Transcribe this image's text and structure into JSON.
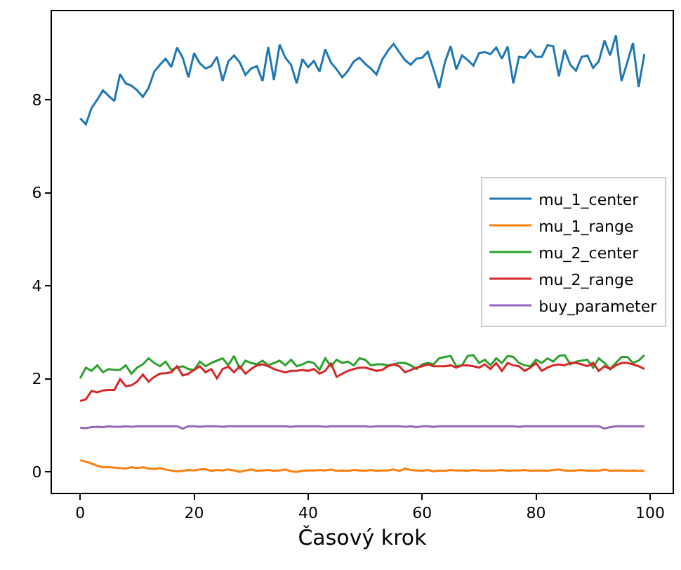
{
  "chart_data": {
    "type": "line",
    "xlabel": "Časový krok",
    "x": [
      0,
      1,
      2,
      3,
      4,
      5,
      6,
      7,
      8,
      9,
      10,
      11,
      12,
      13,
      14,
      15,
      16,
      17,
      18,
      19,
      20,
      21,
      22,
      23,
      24,
      25,
      26,
      27,
      28,
      29,
      30,
      31,
      32,
      33,
      34,
      35,
      36,
      37,
      38,
      39,
      40,
      41,
      42,
      43,
      44,
      45,
      46,
      47,
      48,
      49,
      50,
      51,
      52,
      53,
      54,
      55,
      56,
      57,
      58,
      59,
      60,
      61,
      62,
      63,
      64,
      65,
      66,
      67,
      68,
      69,
      70,
      71,
      72,
      73,
      74,
      75,
      76,
      77,
      78,
      79,
      80,
      81,
      82,
      83,
      84,
      85,
      86,
      87,
      88,
      89,
      90,
      91,
      92,
      93,
      94,
      95,
      96,
      97,
      98,
      99
    ],
    "series": [
      {
        "name": "mu_1_center",
        "color": "#1f77b4",
        "values": [
          7.6,
          7.47,
          7.82,
          8.0,
          8.2,
          8.08,
          7.97,
          8.55,
          8.35,
          8.3,
          8.2,
          8.06,
          8.25,
          8.6,
          8.75,
          8.88,
          8.7,
          9.12,
          8.9,
          8.48,
          9.0,
          8.78,
          8.67,
          8.72,
          8.92,
          8.4,
          8.82,
          8.95,
          8.8,
          8.53,
          8.67,
          8.72,
          8.4,
          9.13,
          8.42,
          9.18,
          8.9,
          8.75,
          8.35,
          8.87,
          8.7,
          8.83,
          8.6,
          9.08,
          8.8,
          8.65,
          8.48,
          8.62,
          8.82,
          8.9,
          8.77,
          8.67,
          8.54,
          8.86,
          9.05,
          9.2,
          9.02,
          8.85,
          8.75,
          8.88,
          8.9,
          9.03,
          8.65,
          8.25,
          8.8,
          9.15,
          8.65,
          8.95,
          8.85,
          8.73,
          9.0,
          9.02,
          8.98,
          9.12,
          8.88,
          9.14,
          8.35,
          8.92,
          8.9,
          9.06,
          8.92,
          8.92,
          9.17,
          9.15,
          8.5,
          9.07,
          8.75,
          8.62,
          8.92,
          8.95,
          8.68,
          8.82,
          9.27,
          8.95,
          9.38,
          8.4,
          8.8,
          9.22,
          8.27,
          8.98
        ]
      },
      {
        "name": "mu_1_range",
        "color": "#ff7f0e",
        "values": [
          0.25,
          0.22,
          0.18,
          0.13,
          0.1,
          0.1,
          0.09,
          0.08,
          0.07,
          0.1,
          0.08,
          0.1,
          0.07,
          0.06,
          0.08,
          0.05,
          0.03,
          0.01,
          0.02,
          0.04,
          0.03,
          0.05,
          0.06,
          0.02,
          0.04,
          0.03,
          0.05,
          0.03,
          0.0,
          0.03,
          0.05,
          0.02,
          0.03,
          0.04,
          0.02,
          0.03,
          0.05,
          0.01,
          0.0,
          0.02,
          0.03,
          0.03,
          0.04,
          0.03,
          0.05,
          0.02,
          0.03,
          0.02,
          0.04,
          0.03,
          0.02,
          0.04,
          0.02,
          0.03,
          0.03,
          0.05,
          0.02,
          0.07,
          0.04,
          0.03,
          0.02,
          0.04,
          0.01,
          0.03,
          0.02,
          0.04,
          0.03,
          0.03,
          0.02,
          0.04,
          0.03,
          0.02,
          0.03,
          0.03,
          0.04,
          0.02,
          0.03,
          0.03,
          0.04,
          0.02,
          0.03,
          0.03,
          0.02,
          0.04,
          0.05,
          0.03,
          0.02,
          0.03,
          0.04,
          0.02,
          0.03,
          0.02,
          0.05,
          0.02,
          0.03,
          0.03,
          0.02,
          0.03,
          0.02,
          0.02
        ]
      },
      {
        "name": "mu_2_center",
        "color": "#2ca02c",
        "values": [
          2.01,
          2.24,
          2.17,
          2.29,
          2.14,
          2.21,
          2.19,
          2.19,
          2.29,
          2.11,
          2.24,
          2.31,
          2.44,
          2.34,
          2.27,
          2.37,
          2.19,
          2.24,
          2.27,
          2.21,
          2.19,
          2.37,
          2.27,
          2.34,
          2.39,
          2.44,
          2.29,
          2.49,
          2.21,
          2.39,
          2.34,
          2.31,
          2.39,
          2.29,
          2.34,
          2.39,
          2.29,
          2.41,
          2.27,
          2.31,
          2.37,
          2.34,
          2.19,
          2.44,
          2.27,
          2.41,
          2.34,
          2.37,
          2.29,
          2.44,
          2.41,
          2.29,
          2.31,
          2.31,
          2.29,
          2.31,
          2.34,
          2.34,
          2.29,
          2.21,
          2.31,
          2.34,
          2.31,
          2.44,
          2.47,
          2.49,
          2.27,
          2.29,
          2.49,
          2.51,
          2.34,
          2.41,
          2.29,
          2.44,
          2.34,
          2.49,
          2.47,
          2.34,
          2.29,
          2.27,
          2.41,
          2.34,
          2.44,
          2.37,
          2.49,
          2.51,
          2.31,
          2.37,
          2.39,
          2.41,
          2.24,
          2.44,
          2.34,
          2.21,
          2.34,
          2.47,
          2.47,
          2.34,
          2.39,
          2.51
        ]
      },
      {
        "name": "mu_2_range",
        "color": "#d62728",
        "values": [
          1.52,
          1.56,
          1.74,
          1.71,
          1.75,
          1.76,
          1.76,
          1.99,
          1.84,
          1.86,
          1.94,
          2.09,
          1.94,
          2.04,
          2.11,
          2.12,
          2.14,
          2.27,
          2.07,
          2.11,
          2.19,
          2.27,
          2.14,
          2.21,
          2.01,
          2.21,
          2.26,
          2.14,
          2.27,
          2.11,
          2.21,
          2.29,
          2.31,
          2.27,
          2.21,
          2.17,
          2.14,
          2.17,
          2.17,
          2.19,
          2.17,
          2.21,
          2.11,
          2.17,
          2.34,
          2.04,
          2.11,
          2.17,
          2.21,
          2.24,
          2.24,
          2.21,
          2.17,
          2.19,
          2.27,
          2.31,
          2.27,
          2.14,
          2.19,
          2.24,
          2.27,
          2.31,
          2.27,
          2.27,
          2.27,
          2.29,
          2.24,
          2.29,
          2.29,
          2.27,
          2.24,
          2.31,
          2.21,
          2.34,
          2.17,
          2.34,
          2.29,
          2.27,
          2.17,
          2.24,
          2.34,
          2.17,
          2.24,
          2.29,
          2.31,
          2.29,
          2.34,
          2.34,
          2.31,
          2.27,
          2.34,
          2.17,
          2.27,
          2.21,
          2.29,
          2.34,
          2.34,
          2.31,
          2.27,
          2.21
        ]
      },
      {
        "name": "buy_parameter",
        "color": "#9467bd",
        "values": [
          0.95,
          0.94,
          0.96,
          0.97,
          0.96,
          0.98,
          0.97,
          0.97,
          0.98,
          0.97,
          0.98,
          0.98,
          0.98,
          0.98,
          0.98,
          0.98,
          0.98,
          0.98,
          0.93,
          0.98,
          0.98,
          0.97,
          0.98,
          0.98,
          0.98,
          0.97,
          0.98,
          0.98,
          0.98,
          0.98,
          0.98,
          0.98,
          0.98,
          0.98,
          0.98,
          0.98,
          0.98,
          0.97,
          0.98,
          0.98,
          0.98,
          0.98,
          0.98,
          0.97,
          0.98,
          0.98,
          0.98,
          0.98,
          0.98,
          0.98,
          0.98,
          0.97,
          0.98,
          0.98,
          0.98,
          0.98,
          0.98,
          0.97,
          0.98,
          0.96,
          0.98,
          0.98,
          0.97,
          0.98,
          0.98,
          0.98,
          0.98,
          0.98,
          0.98,
          0.98,
          0.98,
          0.98,
          0.98,
          0.98,
          0.98,
          0.98,
          0.98,
          0.97,
          0.98,
          0.98,
          0.98,
          0.98,
          0.98,
          0.98,
          0.98,
          0.98,
          0.98,
          0.98,
          0.98,
          0.98,
          0.98,
          0.98,
          0.93,
          0.96,
          0.98,
          0.98,
          0.98,
          0.98,
          0.98,
          0.98
        ]
      }
    ],
    "xlim": [
      -4.95,
      103.95
    ],
    "xticks": [
      0,
      20,
      40,
      60,
      80,
      100
    ],
    "ylim": [
      -0.45,
      9.9
    ],
    "yticks": [
      0,
      2,
      4,
      6,
      8
    ],
    "legend": "right"
  }
}
